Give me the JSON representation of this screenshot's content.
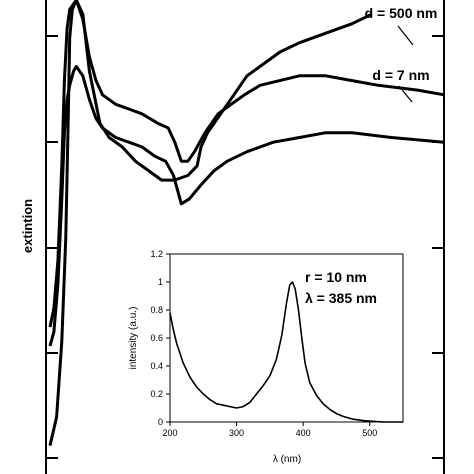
{
  "chart_data": [
    {
      "type": "line",
      "title": "",
      "xlabel": "",
      "ylabel": "extintion",
      "grid": false,
      "legend": "none",
      "curve_labels": [
        "d = 500 nm",
        "d = 7 nm"
      ],
      "series": [
        {
          "name": "",
          "points": [
            [
              0.0,
              0.06
            ],
            [
              0.05,
              0.12
            ],
            [
              0.09,
              0.28
            ],
            [
              0.12,
              0.5
            ],
            [
              0.14,
              0.77
            ],
            [
              0.15,
              0.92
            ],
            [
              0.17,
              0.98
            ],
            [
              0.2,
              1.0
            ],
            [
              0.25,
              0.97
            ],
            [
              0.3,
              0.85
            ],
            [
              0.38,
              0.74
            ],
            [
              0.45,
              0.71
            ],
            [
              0.55,
              0.69
            ],
            [
              0.65,
              0.66
            ],
            [
              0.75,
              0.64
            ],
            [
              0.85,
              0.62
            ],
            [
              0.95,
              0.62
            ],
            [
              1.05,
              0.63
            ],
            [
              1.12,
              0.65
            ],
            [
              1.15,
              0.69
            ],
            [
              1.2,
              0.72
            ],
            [
              1.3,
              0.76
            ],
            [
              1.4,
              0.8
            ],
            [
              1.5,
              0.84
            ],
            [
              1.6,
              0.86
            ],
            [
              1.75,
              0.89
            ],
            [
              1.9,
              0.91
            ],
            [
              2.1,
              0.93
            ],
            [
              2.3,
              0.95
            ],
            [
              2.45,
              0.97
            ]
          ]
        },
        {
          "name": "",
          "points": [
            [
              0.0,
              0.31
            ],
            [
              0.03,
              0.35
            ],
            [
              0.06,
              0.45
            ],
            [
              0.09,
              0.65
            ],
            [
              0.11,
              0.83
            ],
            [
              0.13,
              0.94
            ],
            [
              0.15,
              0.98
            ],
            [
              0.2,
              1.0
            ],
            [
              0.25,
              0.96
            ],
            [
              0.3,
              0.88
            ],
            [
              0.35,
              0.83
            ],
            [
              0.4,
              0.8
            ],
            [
              0.5,
              0.78
            ],
            [
              0.6,
              0.77
            ],
            [
              0.7,
              0.76
            ],
            [
              0.82,
              0.74
            ],
            [
              0.9,
              0.73
            ],
            [
              0.95,
              0.7
            ],
            [
              1.0,
              0.66
            ],
            [
              1.05,
              0.66
            ],
            [
              1.1,
              0.68
            ],
            [
              1.18,
              0.72
            ],
            [
              1.28,
              0.76
            ],
            [
              1.38,
              0.78
            ],
            [
              1.48,
              0.8
            ],
            [
              1.6,
              0.82
            ],
            [
              1.75,
              0.83
            ],
            [
              1.9,
              0.84
            ],
            [
              2.1,
              0.84
            ],
            [
              2.3,
              0.83
            ],
            [
              2.5,
              0.82
            ],
            [
              2.8,
              0.81
            ],
            [
              3.0,
              0.8
            ]
          ]
        },
        {
          "name": "",
          "points": [
            [
              0.0,
              0.27
            ],
            [
              0.03,
              0.3
            ],
            [
              0.06,
              0.4
            ],
            [
              0.09,
              0.58
            ],
            [
              0.11,
              0.72
            ],
            [
              0.13,
              0.79
            ],
            [
              0.15,
              0.82
            ],
            [
              0.18,
              0.85
            ],
            [
              0.2,
              0.86
            ],
            [
              0.25,
              0.84
            ],
            [
              0.3,
              0.79
            ],
            [
              0.35,
              0.75
            ],
            [
              0.4,
              0.73
            ],
            [
              0.5,
              0.71
            ],
            [
              0.6,
              0.7
            ],
            [
              0.7,
              0.69
            ],
            [
              0.8,
              0.67
            ],
            [
              0.88,
              0.66
            ],
            [
              0.94,
              0.63
            ],
            [
              0.98,
              0.59
            ],
            [
              1.0,
              0.57
            ],
            [
              1.06,
              0.58
            ],
            [
              1.15,
              0.61
            ],
            [
              1.25,
              0.64
            ],
            [
              1.35,
              0.66
            ],
            [
              1.5,
              0.68
            ],
            [
              1.7,
              0.7
            ],
            [
              1.9,
              0.71
            ],
            [
              2.1,
              0.72
            ],
            [
              2.3,
              0.72
            ],
            [
              2.6,
              0.71
            ],
            [
              3.0,
              0.7
            ]
          ]
        }
      ]
    },
    {
      "type": "line",
      "title": "",
      "xlabel": "λ (nm)",
      "ylabel": "intensity (a.u.)",
      "xlim": [
        200,
        550
      ],
      "ylim": [
        0,
        1.2
      ],
      "x_ticks": [
        200,
        300,
        400,
        500
      ],
      "x_tick_labels": [
        "200",
        "300",
        "400",
        "500"
      ],
      "y_ticks": [
        0,
        0.2,
        0.4,
        0.6,
        0.8,
        1,
        1.2
      ],
      "y_tick_labels": [
        "0",
        "0.2",
        "0.4",
        "0.6",
        "0.8",
        "1",
        "1.2"
      ],
      "annotations": [
        "r = 10 nm",
        "λ = 385 nm"
      ],
      "grid": false,
      "legend": "none",
      "series": [
        {
          "name": "",
          "points": [
            [
              200,
              0.78
            ],
            [
              205,
              0.66
            ],
            [
              210,
              0.56
            ],
            [
              220,
              0.42
            ],
            [
              230,
              0.32
            ],
            [
              240,
              0.25
            ],
            [
              250,
              0.2
            ],
            [
              260,
              0.16
            ],
            [
              270,
              0.13
            ],
            [
              280,
              0.12
            ],
            [
              290,
              0.11
            ],
            [
              300,
              0.1
            ],
            [
              310,
              0.11
            ],
            [
              320,
              0.14
            ],
            [
              330,
              0.2
            ],
            [
              340,
              0.26
            ],
            [
              350,
              0.33
            ],
            [
              360,
              0.45
            ],
            [
              368,
              0.62
            ],
            [
              375,
              0.85
            ],
            [
              380,
              0.98
            ],
            [
              384,
              1.0
            ],
            [
              388,
              0.95
            ],
            [
              393,
              0.8
            ],
            [
              398,
              0.6
            ],
            [
              403,
              0.42
            ],
            [
              410,
              0.28
            ],
            [
              420,
              0.19
            ],
            [
              430,
              0.13
            ],
            [
              440,
              0.09
            ],
            [
              450,
              0.06
            ],
            [
              460,
              0.04
            ],
            [
              475,
              0.02
            ],
            [
              490,
              0.01
            ],
            [
              505,
              0.005
            ],
            [
              520,
              0.0
            ],
            [
              550,
              0.0
            ]
          ]
        }
      ]
    }
  ]
}
